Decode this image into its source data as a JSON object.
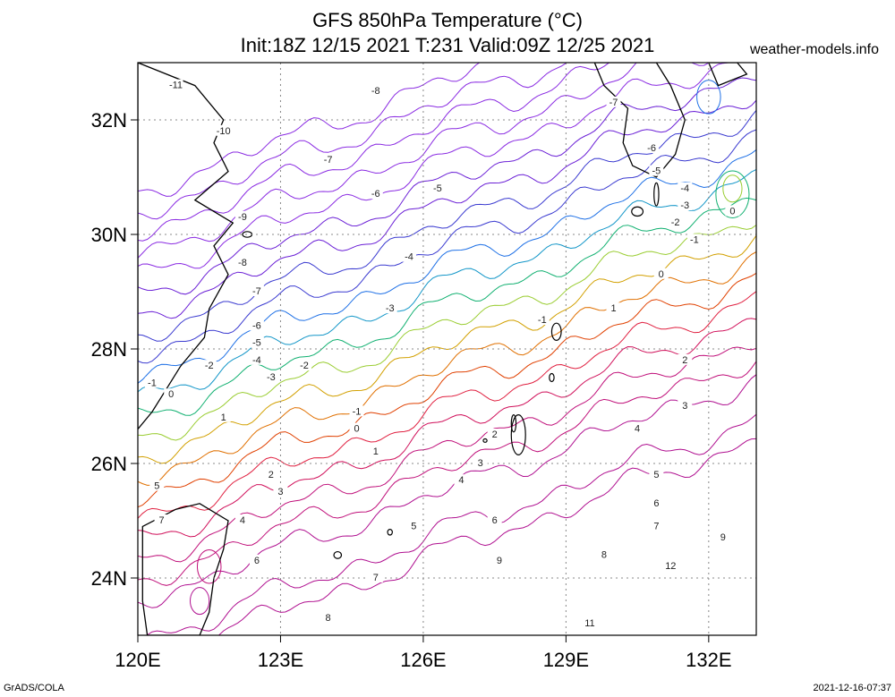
{
  "title_line1": "GFS 850hPa Temperature (°C)",
  "title_line2": "Init:18Z 12/15 2021 T:231 Valid:09Z 12/25 2021",
  "site": "weather-models.info",
  "footer_left": "GrADS/COLA",
  "footer_right": "2021-12-16-07:37",
  "chart_data": {
    "type": "contour-map",
    "x_range": [
      120,
      133
    ],
    "y_range": [
      23,
      33
    ],
    "x_ticks": [
      {
        "value": 120,
        "label": "120E"
      },
      {
        "value": 123,
        "label": "123E"
      },
      {
        "value": 126,
        "label": "126E"
      },
      {
        "value": 129,
        "label": "129E"
      },
      {
        "value": 132,
        "label": "132E"
      }
    ],
    "y_ticks": [
      {
        "value": 24,
        "label": "24N"
      },
      {
        "value": 26,
        "label": "26N"
      },
      {
        "value": 28,
        "label": "28N"
      },
      {
        "value": 30,
        "label": "30N"
      },
      {
        "value": 32,
        "label": "32N"
      }
    ],
    "grid": true,
    "contour_levels": [
      -11,
      -10,
      -9,
      -8,
      -7,
      -6,
      -5,
      -4,
      -3,
      -2,
      -1,
      0,
      1,
      2,
      3,
      4,
      5,
      6,
      7,
      8,
      9,
      11,
      12
    ],
    "contour_labels": [
      {
        "label": "-11",
        "lon": 120.8,
        "lat": 32.6
      },
      {
        "label": "-10",
        "lon": 121.8,
        "lat": 31.8
      },
      {
        "label": "-9",
        "lon": 122.2,
        "lat": 30.3
      },
      {
        "label": "-8",
        "lon": 125.0,
        "lat": 32.5
      },
      {
        "label": "-8",
        "lon": 122.2,
        "lat": 29.5
      },
      {
        "label": "-7",
        "lon": 124.0,
        "lat": 31.3
      },
      {
        "label": "-7",
        "lon": 122.5,
        "lat": 29.0
      },
      {
        "label": "-7",
        "lon": 130.0,
        "lat": 32.3
      },
      {
        "label": "-6",
        "lon": 125.0,
        "lat": 30.7
      },
      {
        "label": "-6",
        "lon": 122.5,
        "lat": 28.4
      },
      {
        "label": "-6",
        "lon": 130.8,
        "lat": 31.5
      },
      {
        "label": "-5",
        "lon": 126.3,
        "lat": 30.8
      },
      {
        "label": "-5",
        "lon": 122.5,
        "lat": 28.1
      },
      {
        "label": "-5",
        "lon": 130.9,
        "lat": 31.1
      },
      {
        "label": "-4",
        "lon": 125.7,
        "lat": 29.6
      },
      {
        "label": "-4",
        "lon": 122.5,
        "lat": 27.8
      },
      {
        "label": "-4",
        "lon": 131.5,
        "lat": 30.8
      },
      {
        "label": "-3",
        "lon": 125.3,
        "lat": 28.7
      },
      {
        "label": "-3",
        "lon": 122.8,
        "lat": 27.5
      },
      {
        "label": "-3",
        "lon": 131.5,
        "lat": 30.5
      },
      {
        "label": "-2",
        "lon": 123.5,
        "lat": 27.7
      },
      {
        "label": "-2",
        "lon": 121.5,
        "lat": 27.7
      },
      {
        "label": "-2",
        "lon": 131.3,
        "lat": 30.2
      },
      {
        "label": "-1",
        "lon": 124.6,
        "lat": 26.9
      },
      {
        "label": "-1",
        "lon": 120.3,
        "lat": 27.4
      },
      {
        "label": "-1",
        "lon": 128.5,
        "lat": 28.5
      },
      {
        "label": "-1",
        "lon": 131.7,
        "lat": 29.9
      },
      {
        "label": "0",
        "lon": 124.6,
        "lat": 26.6
      },
      {
        "label": "0",
        "lon": 120.7,
        "lat": 27.2
      },
      {
        "label": "0",
        "lon": 131.0,
        "lat": 29.3
      },
      {
        "label": "0",
        "lon": 132.5,
        "lat": 30.4
      },
      {
        "label": "1",
        "lon": 125.0,
        "lat": 26.2
      },
      {
        "label": "1",
        "lon": 121.8,
        "lat": 26.8
      },
      {
        "label": "1",
        "lon": 130.0,
        "lat": 28.7
      },
      {
        "label": "2",
        "lon": 122.8,
        "lat": 25.8
      },
      {
        "label": "2",
        "lon": 127.5,
        "lat": 26.5
      },
      {
        "label": "2",
        "lon": 131.5,
        "lat": 27.8
      },
      {
        "label": "3",
        "lon": 123.0,
        "lat": 25.5
      },
      {
        "label": "3",
        "lon": 127.2,
        "lat": 26.0
      },
      {
        "label": "3",
        "lon": 131.5,
        "lat": 27.0
      },
      {
        "label": "4",
        "lon": 122.2,
        "lat": 25.0
      },
      {
        "label": "4",
        "lon": 126.8,
        "lat": 25.7
      },
      {
        "label": "4",
        "lon": 130.5,
        "lat": 26.6
      },
      {
        "label": "5",
        "lon": 120.4,
        "lat": 25.6
      },
      {
        "label": "5",
        "lon": 125.8,
        "lat": 24.9
      },
      {
        "label": "5",
        "lon": 130.9,
        "lat": 25.8
      },
      {
        "label": "6",
        "lon": 122.5,
        "lat": 24.3
      },
      {
        "label": "6",
        "lon": 127.5,
        "lat": 25.0
      },
      {
        "label": "6",
        "lon": 130.9,
        "lat": 25.3
      },
      {
        "label": "7",
        "lon": 120.5,
        "lat": 25.0
      },
      {
        "label": "7",
        "lon": 125.0,
        "lat": 24.0
      },
      {
        "label": "7",
        "lon": 130.9,
        "lat": 24.9
      },
      {
        "label": "8",
        "lon": 124.0,
        "lat": 23.3
      },
      {
        "label": "8",
        "lon": 129.8,
        "lat": 24.4
      },
      {
        "label": "9",
        "lon": 127.6,
        "lat": 24.3
      },
      {
        "label": "9",
        "lon": 132.3,
        "lat": 24.7
      },
      {
        "label": "11",
        "lon": 129.5,
        "lat": 23.2
      },
      {
        "label": "12",
        "lon": 131.2,
        "lat": 24.2
      }
    ]
  }
}
